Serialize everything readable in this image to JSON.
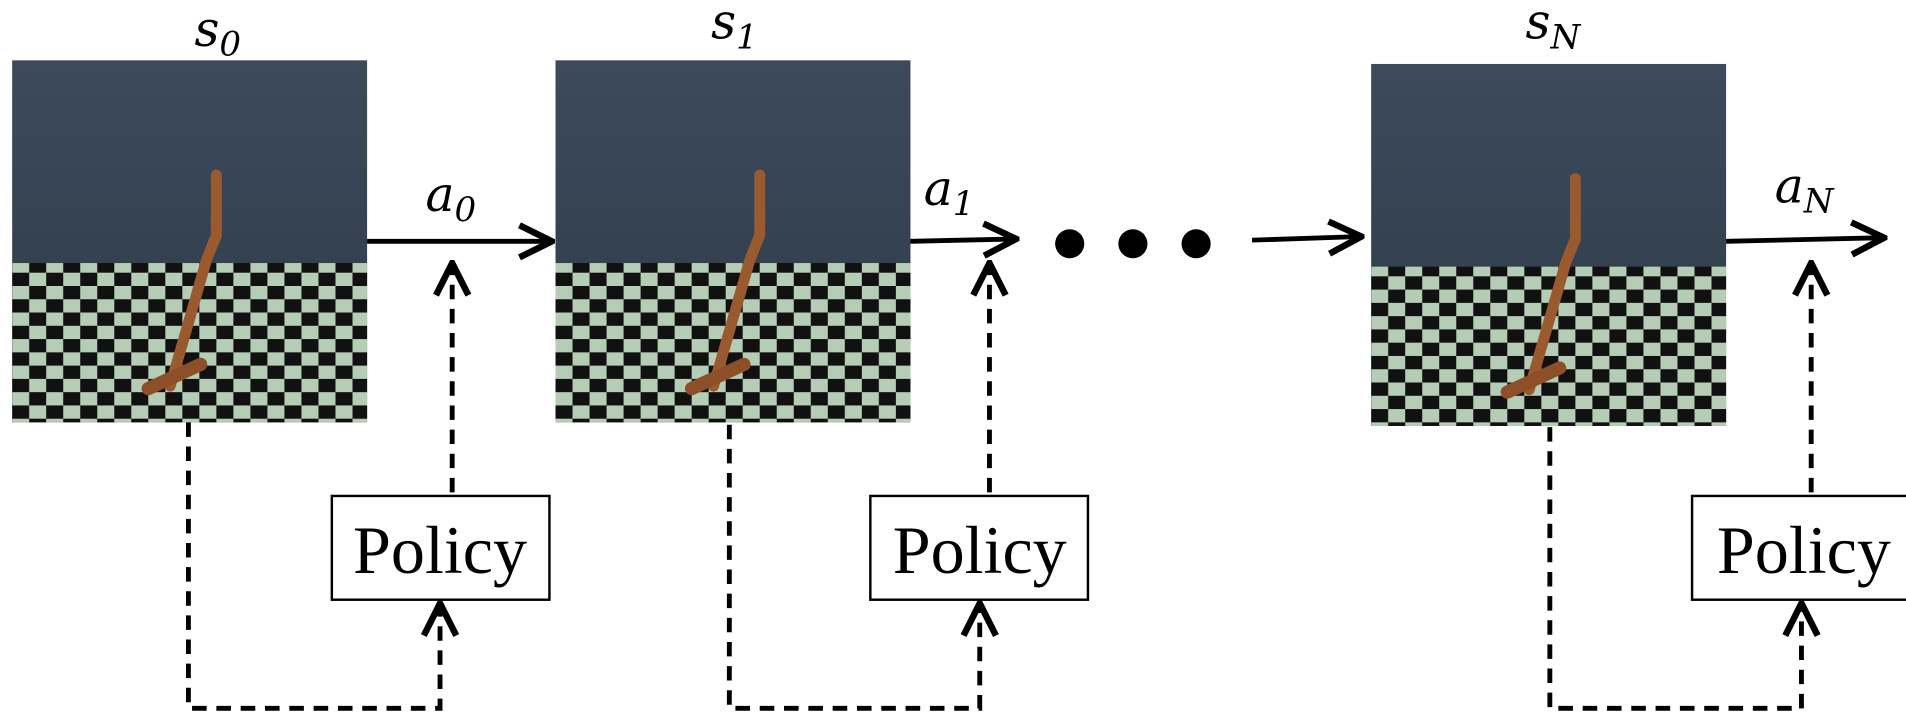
{
  "states": [
    {
      "symbol": "s",
      "subscript": "0"
    },
    {
      "symbol": "s",
      "subscript": "1"
    },
    {
      "symbol": "s",
      "subscript": "N"
    }
  ],
  "actions": [
    {
      "symbol": "a",
      "subscript": "0"
    },
    {
      "symbol": "a",
      "subscript": "1"
    },
    {
      "symbol": "a",
      "subscript": "N"
    }
  ],
  "policies": [
    "Policy",
    "Policy",
    "Policy"
  ]
}
